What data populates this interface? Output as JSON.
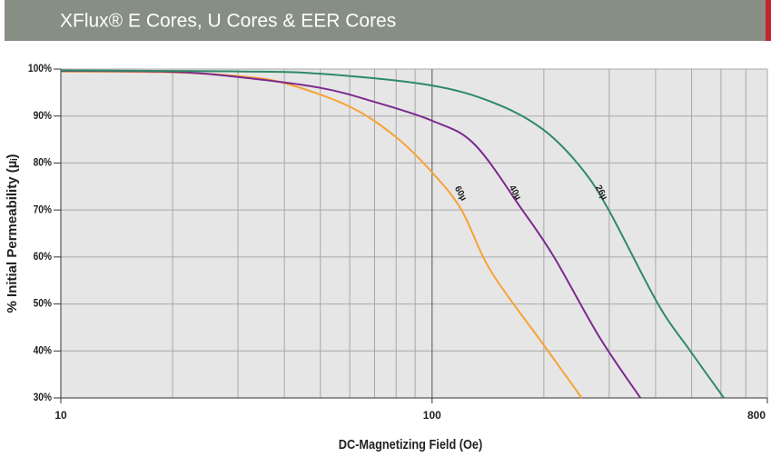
{
  "chart_data": {
    "type": "line",
    "title": "XFlux® E Cores, U Cores & EER Cores",
    "x_label": "DC-Magnetizing Field (Oe)",
    "y_label": "% Initial Permeability (µᵢ)",
    "xscale": "log",
    "xlim": [
      10,
      800
    ],
    "ylim": [
      30,
      100
    ],
    "xticks": [
      10,
      100,
      800
    ],
    "xgrid": [
      20,
      30,
      40,
      50,
      60,
      70,
      80,
      90,
      200,
      300,
      400,
      500,
      600,
      700
    ],
    "yticks": [
      {
        "value": 30,
        "label": "30%"
      },
      {
        "value": 40,
        "label": "40%"
      },
      {
        "value": 50,
        "label": "50%"
      },
      {
        "value": 60,
        "label": "60%"
      },
      {
        "value": 70,
        "label": "70%"
      },
      {
        "value": 80,
        "label": "80%"
      },
      {
        "value": 90,
        "label": "90%"
      },
      {
        "value": 100,
        "label": "100%"
      }
    ],
    "grid": true,
    "series": [
      {
        "name": "60µ",
        "color": "#f7a234",
        "x": [
          10,
          20,
          30,
          40,
          60,
          80,
          100,
          120,
          144,
          201,
          253
        ],
        "values": [
          99.5,
          99.3,
          98.5,
          97,
          92,
          85.5,
          78,
          70,
          57,
          41,
          30
        ]
      },
      {
        "name": "40µ",
        "color": "#7b2a8c",
        "x": [
          10,
          20,
          30,
          50,
          70,
          100,
          130,
          175,
          213,
          282,
          364
        ],
        "values": [
          99.6,
          99.4,
          98.3,
          96,
          93,
          89,
          84,
          70,
          60,
          43,
          30
        ]
      },
      {
        "name": "26µ",
        "color": "#2e8a65",
        "x": [
          10,
          30,
          50,
          100,
          150,
          200,
          252,
          299,
          406,
          496,
          611
        ],
        "values": [
          99.7,
          99.5,
          99,
          96.5,
          92.5,
          87,
          79,
          70,
          50,
          40,
          30
        ]
      }
    ]
  }
}
